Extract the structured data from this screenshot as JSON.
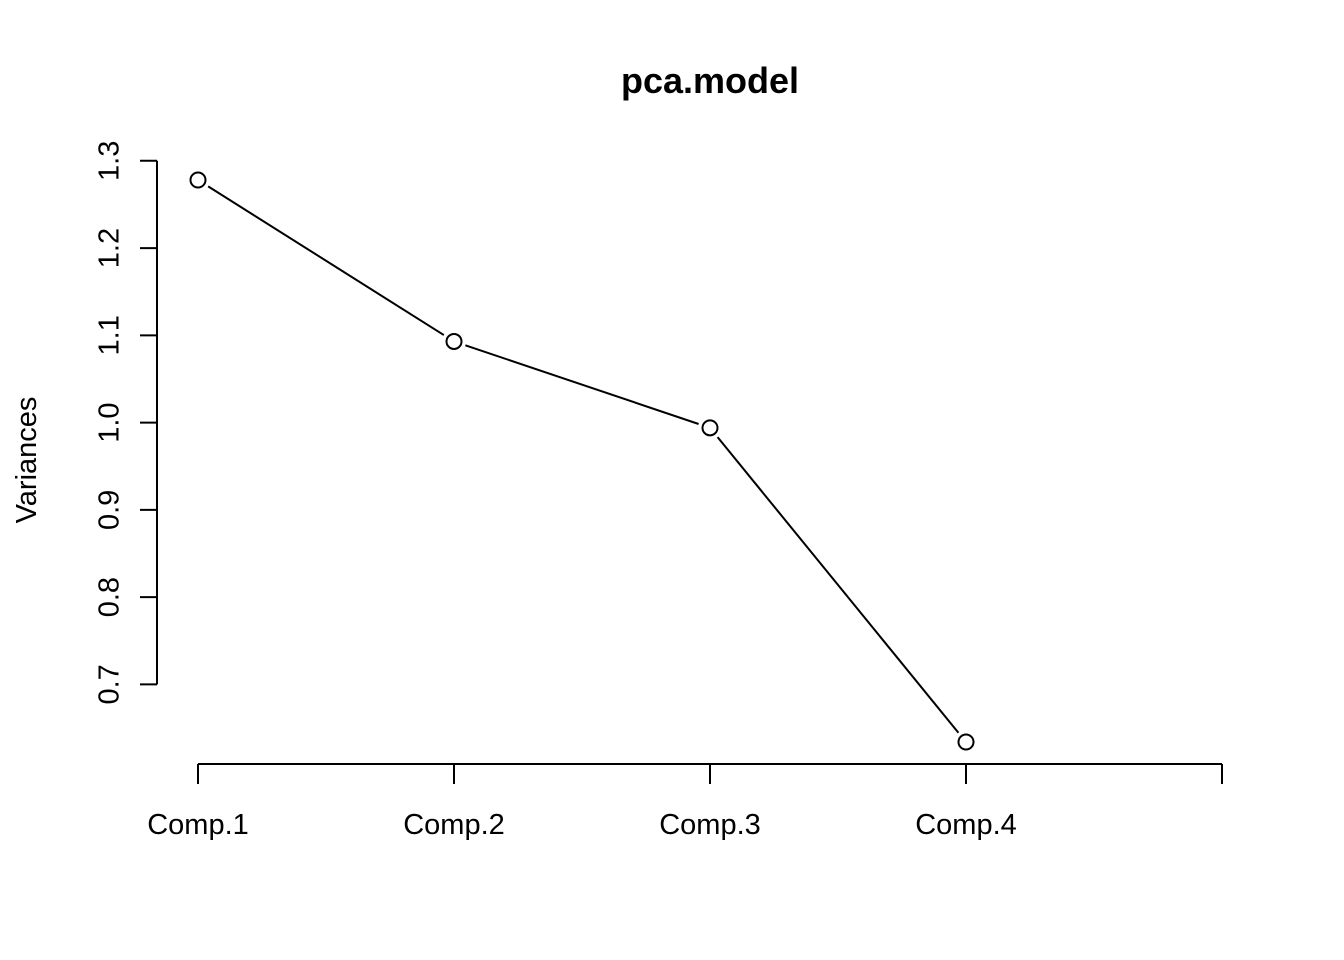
{
  "chart_data": {
    "type": "line",
    "title": "pca.model",
    "xlabel": "",
    "ylabel": "Variances",
    "categories": [
      "Comp.1",
      "Comp.2",
      "Comp.3",
      "Comp.4"
    ],
    "values": [
      1.278,
      1.093,
      0.994,
      0.634
    ],
    "yticks": [
      "0.7",
      "0.8",
      "0.9",
      "1.0",
      "1.1",
      "1.2",
      "1.3"
    ],
    "ylim": [
      0.634,
      1.278
    ],
    "marker": "open-circle",
    "grid": false,
    "colors": {
      "line": "#000000",
      "marker_fill": "#ffffff",
      "background": "#ffffff"
    }
  }
}
